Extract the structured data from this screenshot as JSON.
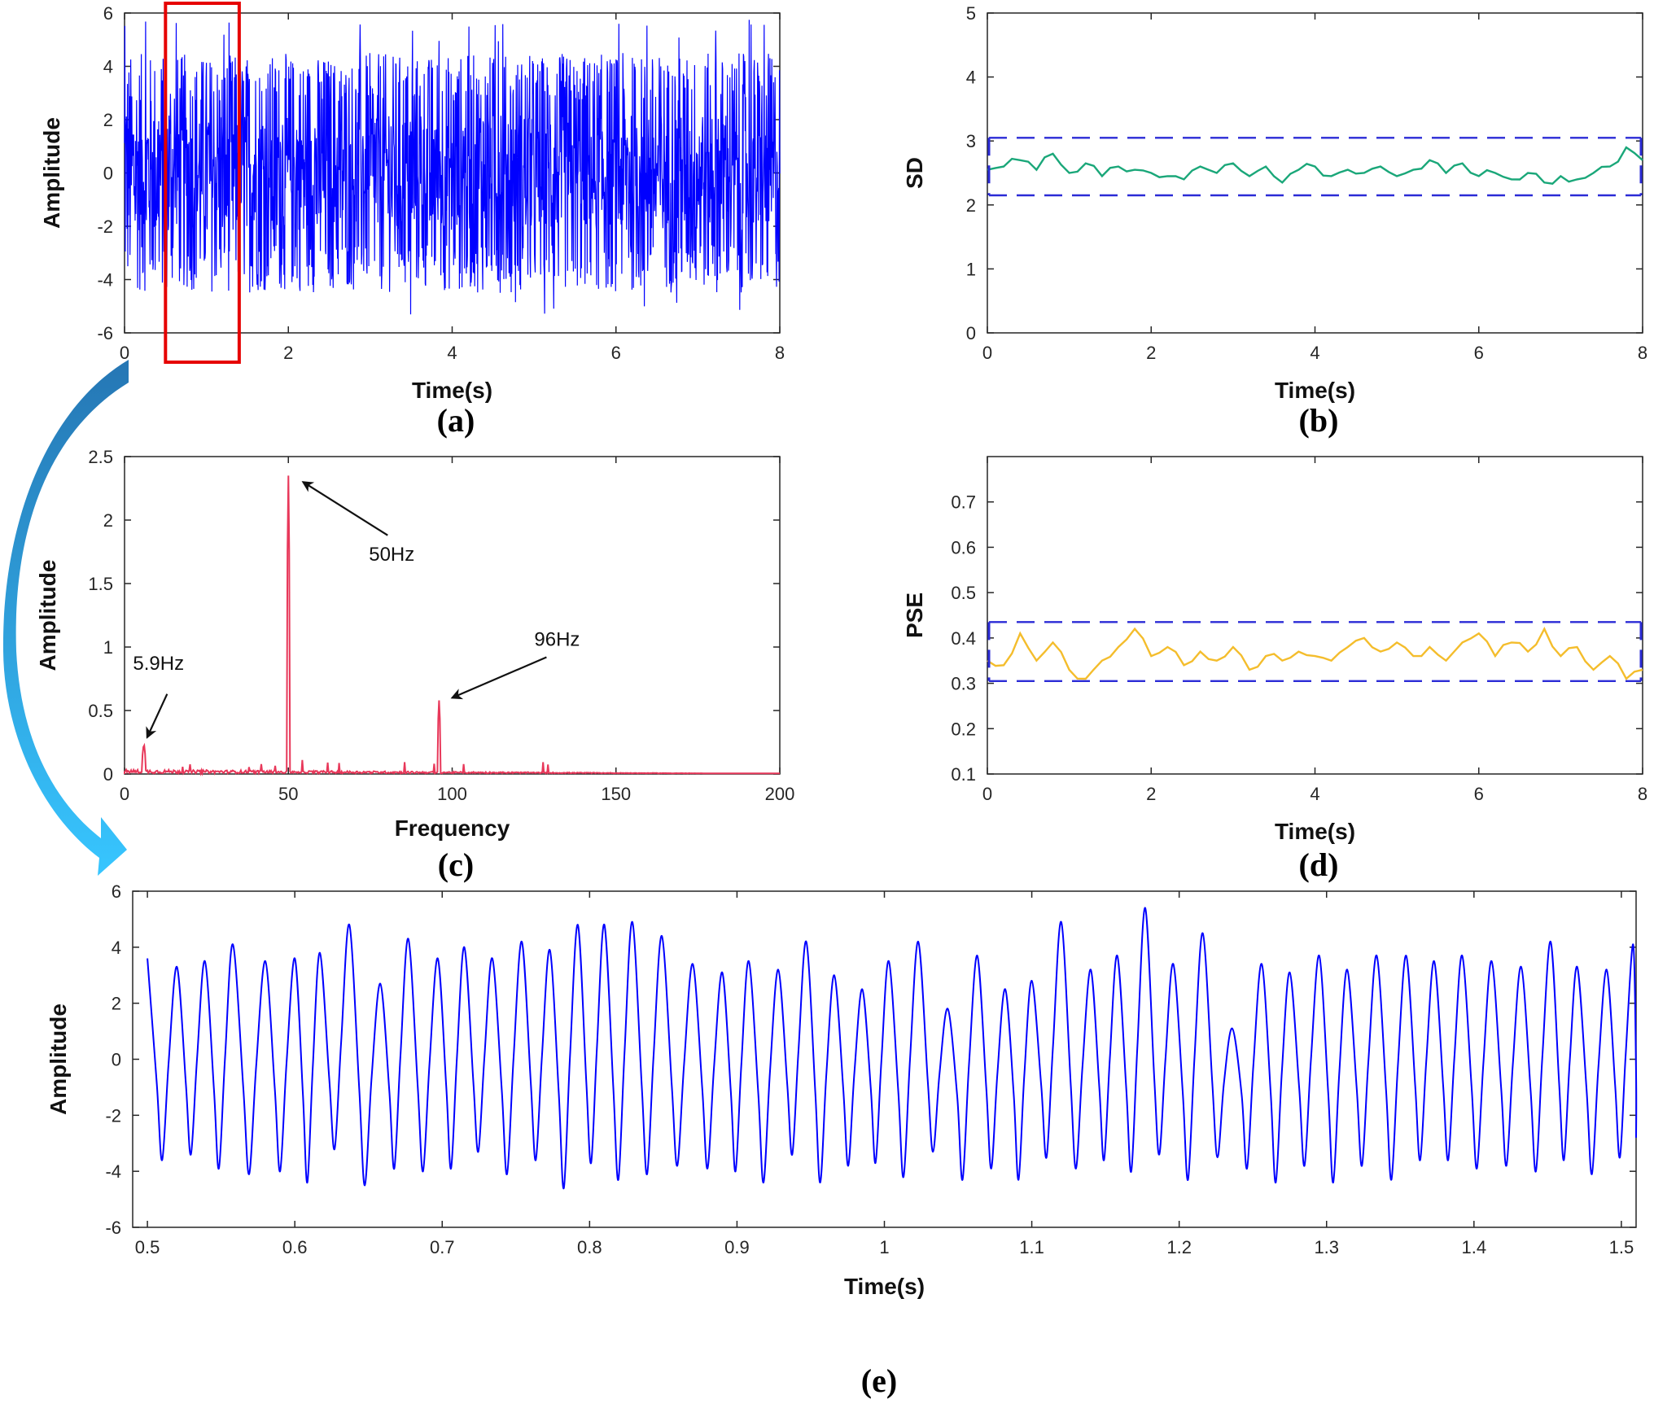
{
  "colors": {
    "signal": "#0000ff",
    "sd_line": "#1aa779",
    "pse_line": "#f4bd2c",
    "spectrum": "#e8385a",
    "bound": "#2b2bd6",
    "highlight_box": "#e60000",
    "arrow": "#1fa2e6"
  },
  "chart_data": [
    {
      "panel": "(a)",
      "type": "line",
      "xlabel": "Time(s)",
      "ylabel": "Amplitude",
      "xlim": [
        0,
        8
      ],
      "ylim": [
        -6,
        6
      ],
      "xticks": [
        0,
        2,
        4,
        6,
        8
      ],
      "yticks": [
        -6,
        -4,
        -2,
        0,
        2,
        4,
        6
      ],
      "series": [
        {
          "envelope_upper_approx": 4.5,
          "envelope_lower_approx": -4.3,
          "max_peak": 5.8,
          "min_peak": -5.5
        }
      ],
      "highlight_range": [
        0.5,
        1.4
      ]
    },
    {
      "panel": "(b)",
      "type": "line",
      "xlabel": "Time(s)",
      "ylabel": "SD",
      "xlim": [
        0,
        8
      ],
      "ylim": [
        0,
        5
      ],
      "xticks": [
        0,
        2,
        4,
        6,
        8
      ],
      "yticks": [
        0,
        1,
        2,
        3,
        4,
        5
      ],
      "upper_bound": 3.05,
      "lower_bound": 2.15,
      "series": [
        {
          "x": [
            0,
            0.2,
            0.4,
            0.6,
            0.8,
            1.0,
            1.2,
            1.4,
            1.6,
            1.8,
            2.0,
            2.2,
            2.4,
            2.6,
            2.8,
            3.0,
            3.2,
            3.4,
            3.6,
            3.8,
            4.0,
            4.2,
            4.4,
            4.6,
            4.8,
            5.0,
            5.2,
            5.4,
            5.6,
            5.8,
            6.0,
            6.2,
            6.4,
            6.6,
            6.8,
            7.0,
            7.2,
            7.4,
            7.6,
            7.8,
            8.0
          ],
          "y": [
            2.55,
            2.6,
            2.7,
            2.55,
            2.8,
            2.5,
            2.65,
            2.45,
            2.6,
            2.55,
            2.5,
            2.45,
            2.4,
            2.6,
            2.5,
            2.65,
            2.45,
            2.6,
            2.35,
            2.55,
            2.6,
            2.45,
            2.55,
            2.5,
            2.6,
            2.45,
            2.55,
            2.7,
            2.5,
            2.65,
            2.45,
            2.5,
            2.4,
            2.5,
            2.35,
            2.45,
            2.4,
            2.5,
            2.6,
            2.9,
            2.7
          ]
        }
      ]
    },
    {
      "panel": "(c)",
      "type": "line",
      "xlabel": "Frequency",
      "ylabel": "Amplitude",
      "xlim": [
        0,
        200
      ],
      "ylim": [
        0,
        2.5
      ],
      "xticks": [
        0,
        50,
        100,
        150,
        200
      ],
      "yticks": [
        0,
        0.5,
        1,
        1.5,
        2,
        2.5
      ],
      "peaks": [
        {
          "x": 5.9,
          "y": 0.25,
          "label": "5.9Hz"
        },
        {
          "x": 50,
          "y": 2.35,
          "label": "50Hz"
        },
        {
          "x": 96,
          "y": 0.58,
          "label": "96Hz"
        }
      ]
    },
    {
      "panel": "(d)",
      "type": "line",
      "xlabel": "Time(s)",
      "ylabel": "PSE",
      "xlim": [
        0,
        8
      ],
      "ylim": [
        0.1,
        0.8
      ],
      "xticks": [
        0,
        2,
        4,
        6,
        8
      ],
      "yticks": [
        0.1,
        0.2,
        0.3,
        0.4,
        0.5,
        0.6,
        0.7
      ],
      "upper_bound": 0.435,
      "lower_bound": 0.305,
      "series": [
        {
          "x": [
            0,
            0.2,
            0.4,
            0.6,
            0.8,
            1.0,
            1.2,
            1.4,
            1.6,
            1.8,
            2.0,
            2.2,
            2.4,
            2.6,
            2.8,
            3.0,
            3.2,
            3.4,
            3.6,
            3.8,
            4.0,
            4.2,
            4.4,
            4.6,
            4.8,
            5.0,
            5.2,
            5.4,
            5.6,
            5.8,
            6.0,
            6.2,
            6.4,
            6.6,
            6.8,
            7.0,
            7.2,
            7.4,
            7.6,
            7.8,
            8.0
          ],
          "y": [
            0.35,
            0.34,
            0.41,
            0.35,
            0.39,
            0.33,
            0.31,
            0.35,
            0.38,
            0.42,
            0.36,
            0.38,
            0.34,
            0.37,
            0.35,
            0.38,
            0.33,
            0.36,
            0.35,
            0.37,
            0.36,
            0.35,
            0.38,
            0.4,
            0.37,
            0.39,
            0.36,
            0.38,
            0.35,
            0.39,
            0.41,
            0.36,
            0.39,
            0.37,
            0.42,
            0.36,
            0.38,
            0.33,
            0.36,
            0.31,
            0.33
          ]
        }
      ]
    },
    {
      "panel": "(e)",
      "type": "line",
      "xlabel": "Time(s)",
      "ylabel": "Amplitude",
      "xlim": [
        0.49,
        1.51
      ],
      "ylim": [
        -6,
        6
      ],
      "xticks": [
        0.5,
        0.6,
        0.7,
        0.8,
        0.9,
        1,
        1.1,
        1.2,
        1.3,
        1.4,
        1.5
      ],
      "yticks": [
        -6,
        -4,
        -2,
        0,
        2,
        4,
        6
      ],
      "peak_times": [
        0.5,
        0.52,
        0.539,
        0.558,
        0.58,
        0.6,
        0.617,
        0.637,
        0.658,
        0.677,
        0.697,
        0.715,
        0.734,
        0.754,
        0.773,
        0.792,
        0.81,
        0.829,
        0.849,
        0.87,
        0.89,
        0.908,
        0.928,
        0.947,
        0.966,
        0.985,
        1.003,
        1.023,
        1.043,
        1.063,
        1.082,
        1.1,
        1.12,
        1.14,
        1.158,
        1.177,
        1.196,
        1.216,
        1.236,
        1.256,
        1.275,
        1.295,
        1.314,
        1.334,
        1.354,
        1.373,
        1.392,
        1.412,
        1.432,
        1.452,
        1.47,
        1.49,
        1.508
      ],
      "peak_values": [
        3.6,
        3.3,
        3.5,
        4.1,
        3.5,
        3.6,
        3.8,
        4.8,
        2.7,
        4.3,
        3.6,
        4.0,
        3.6,
        4.2,
        3.9,
        4.8,
        4.8,
        4.9,
        4.4,
        3.4,
        3.1,
        3.5,
        3.2,
        4.2,
        3.0,
        2.5,
        3.5,
        4.2,
        1.8,
        3.7,
        2.5,
        2.8,
        4.9,
        3.2,
        3.7,
        5.4,
        3.4,
        4.5,
        1.1,
        3.4,
        3.1,
        3.7,
        3.2,
        3.7,
        3.7,
        3.5,
        3.7,
        3.5,
        3.3,
        4.2,
        3.3,
        3.2,
        4.1
      ],
      "trough_values": [
        -3.6,
        -3.4,
        -3.9,
        -4.1,
        -4.0,
        -4.4,
        -3.2,
        -4.5,
        -3.9,
        -4.0,
        -3.9,
        -3.3,
        -4.1,
        -3.6,
        -4.6,
        -3.7,
        -4.3,
        -4.1,
        -3.8,
        -3.9,
        -4.0,
        -4.4,
        -3.4,
        -4.4,
        -3.8,
        -3.7,
        -4.2,
        -3.3,
        -4.3,
        -3.9,
        -4.3,
        -3.5,
        -3.9,
        -3.6,
        -4.0,
        -3.4,
        -4.3,
        -3.5,
        -3.9,
        -4.4,
        -3.8,
        -4.4,
        -3.8,
        -4.3,
        -3.6,
        -3.6,
        -3.9,
        -3.8,
        -4.0,
        -3.6,
        -4.1,
        -3.5,
        -2.8
      ]
    }
  ]
}
